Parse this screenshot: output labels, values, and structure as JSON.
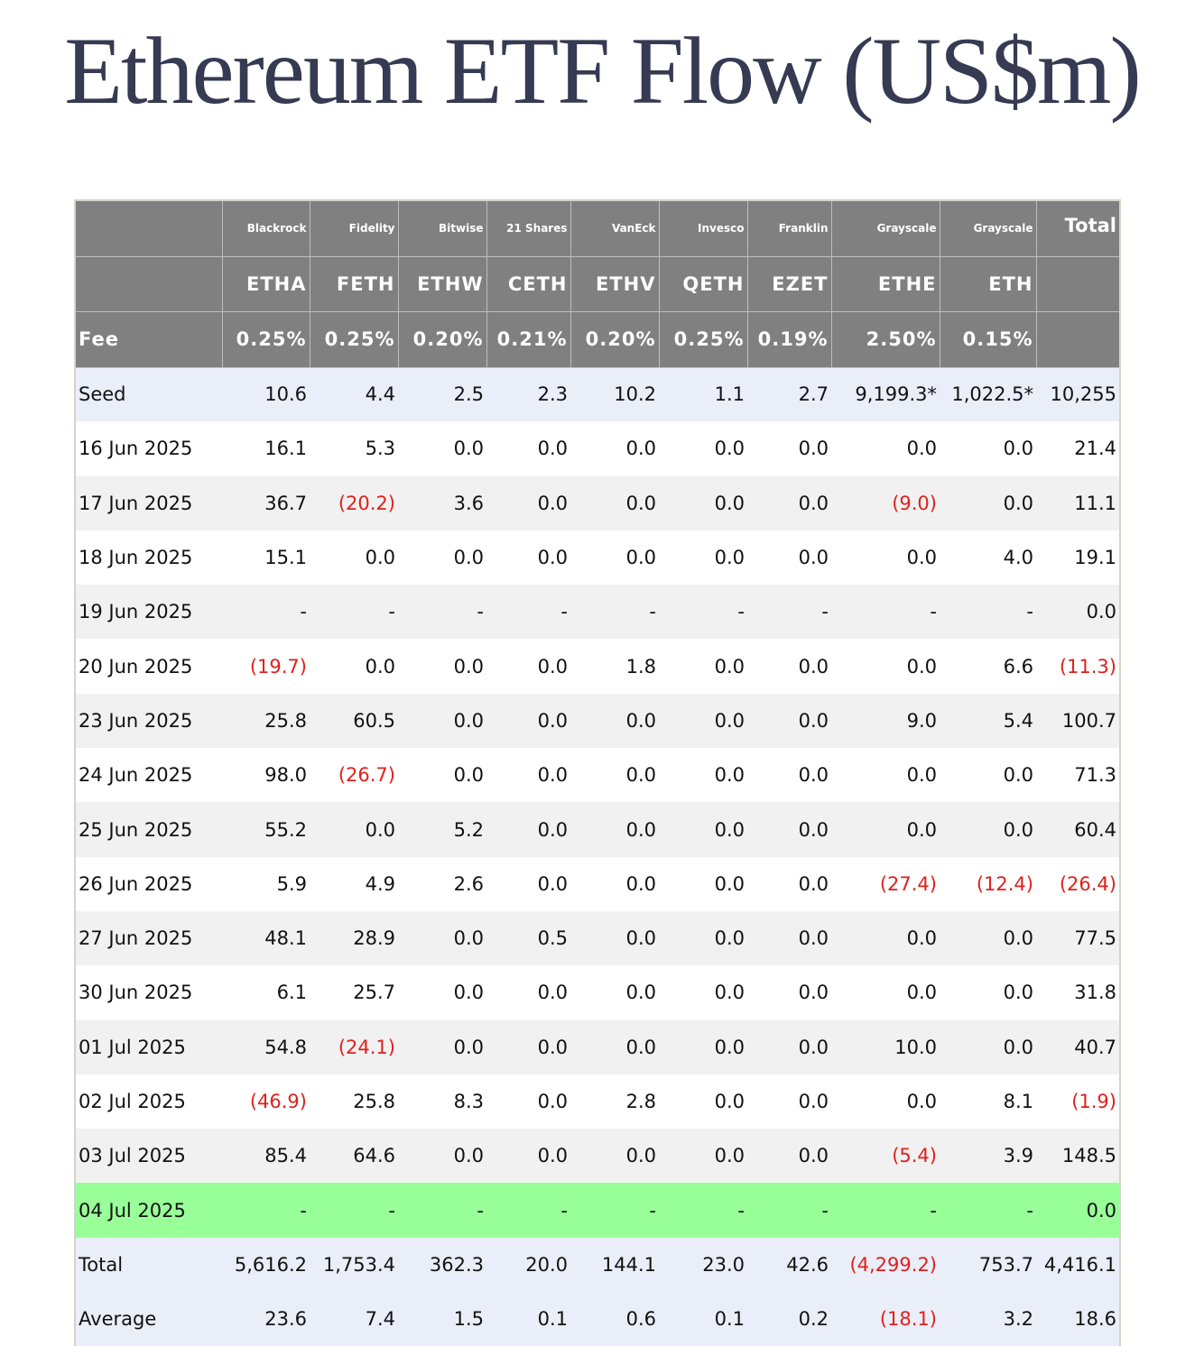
{
  "title": "Ethereum ETF Flow (US$m)",
  "colors": {
    "header_bg": "#808080",
    "seed_bg": "#e9eef8",
    "today_bg": "#99ff99",
    "negative": "#e0201c",
    "title": "#363a52"
  },
  "header": {
    "providers": [
      "",
      "Blackrock",
      "Fidelity",
      "Bitwise",
      "21 Shares",
      "VanEck",
      "Invesco",
      "Franklin",
      "Grayscale",
      "Grayscale",
      "Total"
    ],
    "tickers": [
      "",
      "ETHA",
      "FETH",
      "ETHW",
      "CETH",
      "ETHV",
      "QETH",
      "EZET",
      "ETHE",
      "ETH",
      ""
    ],
    "fees": [
      "Fee",
      "0.25%",
      "0.25%",
      "0.20%",
      "0.21%",
      "0.20%",
      "0.25%",
      "0.19%",
      "2.50%",
      "0.15%",
      ""
    ]
  },
  "rows": [
    {
      "type": "seed",
      "cells": [
        "Seed",
        "10.6",
        "4.4",
        "2.5",
        "2.3",
        "10.2",
        "1.1",
        "2.7",
        "9,199.3*",
        "1,022.5*",
        "10,255"
      ]
    },
    {
      "type": "even",
      "cells": [
        "16 Jun 2025",
        "16.1",
        "5.3",
        "0.0",
        "0.0",
        "0.0",
        "0.0",
        "0.0",
        "0.0",
        "0.0",
        "21.4"
      ]
    },
    {
      "type": "odd",
      "cells": [
        "17 Jun 2025",
        "36.7",
        "(20.2)",
        "3.6",
        "0.0",
        "0.0",
        "0.0",
        "0.0",
        "(9.0)",
        "0.0",
        "11.1"
      ]
    },
    {
      "type": "even",
      "cells": [
        "18 Jun 2025",
        "15.1",
        "0.0",
        "0.0",
        "0.0",
        "0.0",
        "0.0",
        "0.0",
        "0.0",
        "4.0",
        "19.1"
      ]
    },
    {
      "type": "odd",
      "cells": [
        "19 Jun 2025",
        "-",
        "-",
        "-",
        "-",
        "-",
        "-",
        "-",
        "-",
        "-",
        "0.0"
      ]
    },
    {
      "type": "even",
      "cells": [
        "20 Jun 2025",
        "(19.7)",
        "0.0",
        "0.0",
        "0.0",
        "1.8",
        "0.0",
        "0.0",
        "0.0",
        "6.6",
        "(11.3)"
      ]
    },
    {
      "type": "odd",
      "cells": [
        "23 Jun 2025",
        "25.8",
        "60.5",
        "0.0",
        "0.0",
        "0.0",
        "0.0",
        "0.0",
        "9.0",
        "5.4",
        "100.7"
      ]
    },
    {
      "type": "even",
      "cells": [
        "24 Jun 2025",
        "98.0",
        "(26.7)",
        "0.0",
        "0.0",
        "0.0",
        "0.0",
        "0.0",
        "0.0",
        "0.0",
        "71.3"
      ]
    },
    {
      "type": "odd",
      "cells": [
        "25 Jun 2025",
        "55.2",
        "0.0",
        "5.2",
        "0.0",
        "0.0",
        "0.0",
        "0.0",
        "0.0",
        "0.0",
        "60.4"
      ]
    },
    {
      "type": "even",
      "cells": [
        "26 Jun 2025",
        "5.9",
        "4.9",
        "2.6",
        "0.0",
        "0.0",
        "0.0",
        "0.0",
        "(27.4)",
        "(12.4)",
        "(26.4)"
      ]
    },
    {
      "type": "odd",
      "cells": [
        "27 Jun 2025",
        "48.1",
        "28.9",
        "0.0",
        "0.5",
        "0.0",
        "0.0",
        "0.0",
        "0.0",
        "0.0",
        "77.5"
      ]
    },
    {
      "type": "even",
      "cells": [
        "30 Jun 2025",
        "6.1",
        "25.7",
        "0.0",
        "0.0",
        "0.0",
        "0.0",
        "0.0",
        "0.0",
        "0.0",
        "31.8"
      ]
    },
    {
      "type": "odd",
      "cells": [
        "01 Jul 2025",
        "54.8",
        "(24.1)",
        "0.0",
        "0.0",
        "0.0",
        "0.0",
        "0.0",
        "10.0",
        "0.0",
        "40.7"
      ]
    },
    {
      "type": "even",
      "cells": [
        "02 Jul 2025",
        "(46.9)",
        "25.8",
        "8.3",
        "0.0",
        "2.8",
        "0.0",
        "0.0",
        "0.0",
        "8.1",
        "(1.9)"
      ]
    },
    {
      "type": "odd",
      "cells": [
        "03 Jul 2025",
        "85.4",
        "64.6",
        "0.0",
        "0.0",
        "0.0",
        "0.0",
        "0.0",
        "(5.4)",
        "3.9",
        "148.5"
      ]
    },
    {
      "type": "today",
      "cells": [
        "04 Jul 2025",
        "-",
        "-",
        "-",
        "-",
        "-",
        "-",
        "-",
        "-",
        "-",
        "0.0"
      ]
    },
    {
      "type": "total",
      "cells": [
        "Total",
        "5,616.2",
        "1,753.4",
        "362.3",
        "20.0",
        "144.1",
        "23.0",
        "42.6",
        "(4,299.2)",
        "753.7",
        "4,416.1"
      ]
    },
    {
      "type": "average",
      "cells": [
        "Average",
        "23.6",
        "7.4",
        "1.5",
        "0.1",
        "0.6",
        "0.1",
        "0.2",
        "(18.1)",
        "3.2",
        "18.6"
      ]
    }
  ]
}
